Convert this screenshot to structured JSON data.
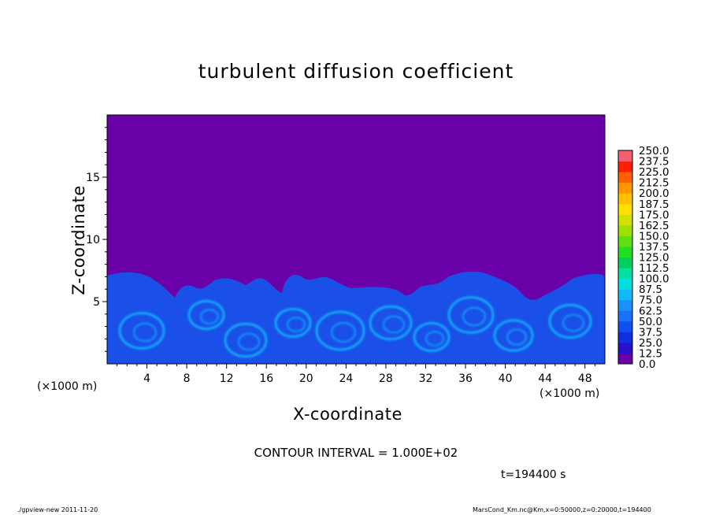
{
  "chart_data": {
    "type": "heatmap",
    "title": "turbulent diffusion coefficient",
    "xlabel": "X-coordinate",
    "ylabel": "Z-coordinate",
    "x_unit": "(×1000 m)",
    "xlim": [
      0,
      50
    ],
    "ylim": [
      0,
      20
    ],
    "x_ticks": [
      4,
      8,
      12,
      16,
      20,
      24,
      28,
      32,
      36,
      40,
      44,
      48
    ],
    "y_ticks": [
      5,
      10,
      15
    ],
    "colorbar": {
      "levels": [
        "0.0",
        "12.5",
        "25.0",
        "37.5",
        "50.0",
        "62.5",
        "75.0",
        "87.5",
        "100.0",
        "112.5",
        "125.0",
        "137.5",
        "150.0",
        "162.5",
        "175.0",
        "187.5",
        "200.0",
        "212.5",
        "225.0",
        "237.5",
        "250.0"
      ],
      "colors": [
        "#6a00a8",
        "#2a10c8",
        "#1030e0",
        "#1050f0",
        "#1a70ff",
        "#1a90ff",
        "#10b8ff",
        "#00e0e0",
        "#00e0a0",
        "#00d060",
        "#20e020",
        "#60e010",
        "#a0e000",
        "#d0e000",
        "#ffe000",
        "#ffc000",
        "#ff9800",
        "#ff6000",
        "#ff2000",
        "#f06070"
      ]
    },
    "contour_interval": "CONTOUR INTERVAL = 1.000E+02",
    "time": "t=194400 s"
  },
  "footer": {
    "left": "./gpview-new   2011-11-20",
    "right": "MarsCond_Km.nc@Km,x=0:50000,z=0:20000,t=194400"
  },
  "colors": {
    "background_field": "#6a00a8",
    "turbulent_base": "#1a50e8",
    "eddy_highlight": "#10c0ff"
  }
}
